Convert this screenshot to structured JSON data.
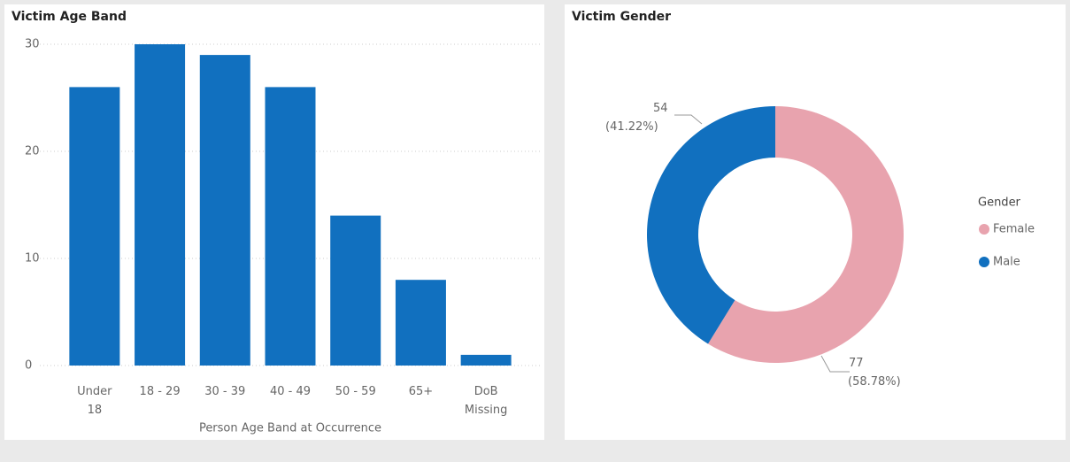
{
  "chart_data": [
    {
      "type": "bar",
      "title": "Victim Age Band",
      "categories": [
        "Under 18",
        "18 - 29",
        "30 - 39",
        "40 - 49",
        "50 - 59",
        "65+",
        "DoB Missing"
      ],
      "values": [
        26,
        30,
        29,
        26,
        14,
        8,
        1
      ],
      "color": "#1170bf",
      "x_label": "Person Age Band at Occurrence",
      "ylim": [
        0,
        30
      ],
      "yticks": [
        0,
        10,
        20,
        30
      ],
      "grid": true
    },
    {
      "type": "pie",
      "title": "Victim Gender",
      "legend_title": "Gender",
      "categories": [
        "Female",
        "Male"
      ],
      "values": [
        77,
        54
      ],
      "value_labels": [
        "77 (58.78%)",
        "54 (41.22%)"
      ],
      "colors": [
        "#e8a3ae",
        "#1170bf"
      ],
      "legend": "right"
    }
  ]
}
